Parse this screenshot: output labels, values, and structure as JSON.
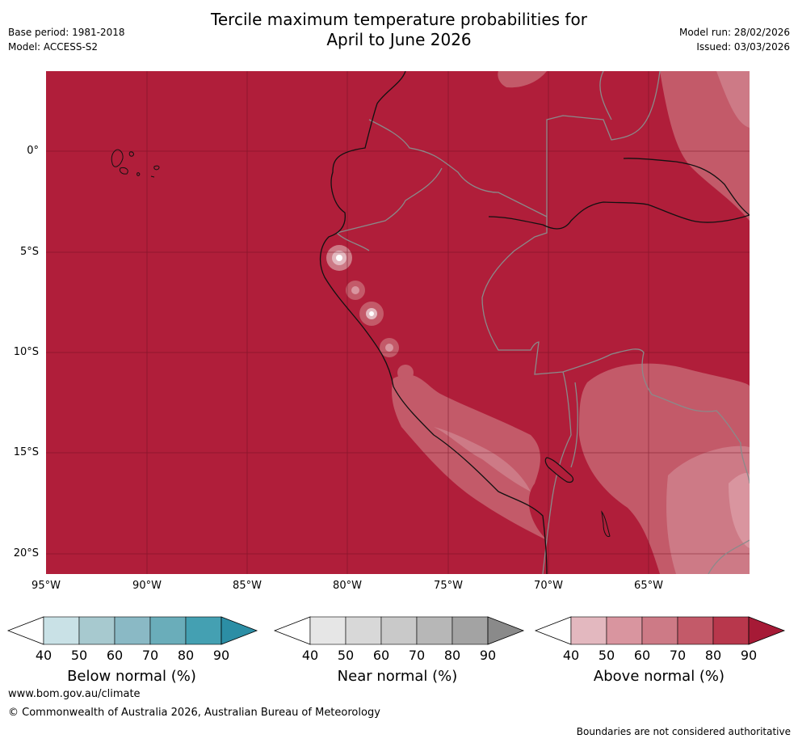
{
  "title_line1": "Tercile maximum temperature probabilities for",
  "title_line2": "April to June 2026",
  "base_period": "Base period: 1981-2018",
  "model": "Model: ACCESS-S2",
  "model_run": "Model run: 28/02/2026",
  "issued": "Issued: 03/03/2026",
  "map": {
    "lat_labels": [
      "0°",
      "5°S",
      "10°S",
      "15°S",
      "20°S"
    ],
    "lon_labels": [
      "95°W",
      "90°W",
      "85°W",
      "80°W",
      "75°W",
      "70°W",
      "65°W"
    ],
    "background_color": "#b01e3a"
  },
  "colorbars": [
    {
      "title": "Below normal (%)",
      "ticks": [
        "40",
        "50",
        "60",
        "70",
        "80",
        "90"
      ],
      "colors": [
        "#c9e1e6",
        "#a7c9cf",
        "#8ab9c5",
        "#6aadba",
        "#44a0b2",
        "#2c8ea5"
      ]
    },
    {
      "title": "Near normal (%)",
      "ticks": [
        "40",
        "50",
        "60",
        "70",
        "80",
        "90"
      ],
      "colors": [
        "#e6e6e6",
        "#d8d8d8",
        "#c9c9c9",
        "#b7b7b7",
        "#a3a3a3",
        "#8a8a8a"
      ]
    },
    {
      "title": "Above normal (%)",
      "ticks": [
        "40",
        "50",
        "60",
        "70",
        "80",
        "90"
      ],
      "colors": [
        "#e3b8bf",
        "#d9959f",
        "#cd7a86",
        "#c35a69",
        "#b8374c",
        "#a61a36"
      ]
    }
  ],
  "footer": {
    "url": "www.bom.gov.au/climate",
    "copyright": "© Commonwealth of Australia 2026, Australian Bureau of Meteorology",
    "disclaimer": "Boundaries are not considered authoritative"
  }
}
